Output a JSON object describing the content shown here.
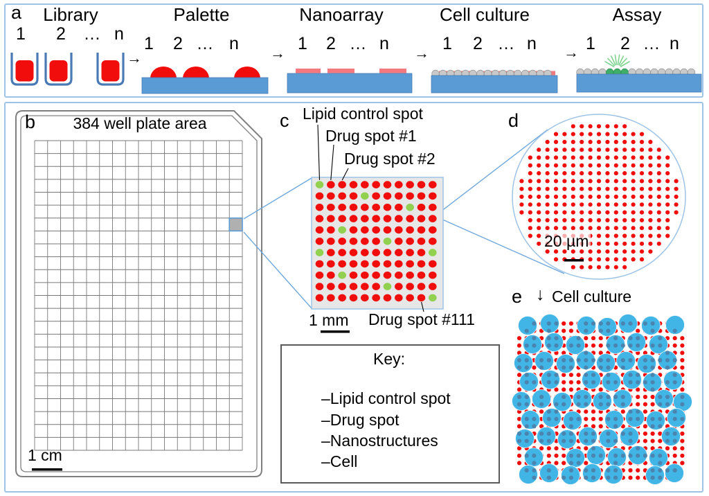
{
  "colors": {
    "frame_blue": "#9dc3e6",
    "connector_blue": "#6fa8dc",
    "substrate_blue": "#5b9bd5",
    "substrate_edge": "#4a7ab5",
    "red": "#f20d0d",
    "salmon": "#f4797f",
    "green_spot": "#92d050",
    "assay_green": "#3fae68",
    "assay_green_edge": "#2f9355",
    "assay_ray": "#7ed492",
    "cell_blue": "#41b6e6",
    "cell_inner_dot": "#4d7fa9",
    "gray_cell_fill": "#c9c9c9",
    "gray_cell_edge": "#9b9b9b",
    "panel_c_bg": "#e7e7e7",
    "plate_outline": "#7f7f7f",
    "grid_line": "#777777",
    "well_highlight": "#b0b0b0",
    "key_border": "#595959"
  },
  "panel_a": {
    "label": "a",
    "arrow_glyph": "→",
    "steps": [
      {
        "title": "Library",
        "numbers": [
          "1",
          "2",
          "…",
          "n"
        ]
      },
      {
        "title": "Palette",
        "numbers": [
          "1",
          "2",
          "…",
          "n"
        ]
      },
      {
        "title": "Nanoarray",
        "numbers": [
          "1",
          "2",
          "…",
          "n"
        ]
      },
      {
        "title": "Cell culture",
        "numbers": [
          "1",
          "2",
          "…",
          "n"
        ]
      },
      {
        "title": "Assay",
        "numbers": [
          "1",
          "2",
          "…",
          "n"
        ]
      }
    ]
  },
  "panel_b": {
    "label": "b",
    "title": "384 well plate area",
    "grid_cols": 16,
    "grid_rows": 24,
    "highlight_col": 16,
    "highlight_row": 7,
    "scale_label": "1 cm"
  },
  "panel_c": {
    "label": "c",
    "ann_lipid": "Lipid control spot",
    "ann_drug1": "Drug spot #1",
    "ann_drug2": "Drug spot #2",
    "ann_drug111": "Drug spot #111",
    "scale_label": "1 mm",
    "grid_rows": 11,
    "grid_cols": 11,
    "green_cells": [
      [
        1,
        1
      ],
      [
        2,
        5
      ],
      [
        3,
        9
      ],
      [
        5,
        3
      ],
      [
        6,
        7
      ],
      [
        7,
        1
      ],
      [
        7,
        11
      ],
      [
        9,
        3
      ],
      [
        10,
        7
      ],
      [
        11,
        11
      ]
    ]
  },
  "panel_d": {
    "label": "d",
    "scale_label": "20 µm"
  },
  "panel_e": {
    "label": "e",
    "arrow_glyph": "↓",
    "title": "Cell culture",
    "cells": [
      [
        762,
        470
      ],
      [
        794,
        467
      ],
      [
        847,
        470
      ],
      [
        877,
        472
      ],
      [
        907,
        467
      ],
      [
        940,
        470
      ],
      [
        975,
        469
      ],
      [
        769,
        497
      ],
      [
        800,
        494
      ],
      [
        831,
        498
      ],
      [
        889,
        497
      ],
      [
        919,
        494
      ],
      [
        951,
        497
      ],
      [
        756,
        524
      ],
      [
        786,
        521
      ],
      [
        817,
        525
      ],
      [
        846,
        520
      ],
      [
        875,
        524
      ],
      [
        904,
        521
      ],
      [
        934,
        525
      ],
      [
        964,
        520
      ],
      [
        764,
        551
      ],
      [
        795,
        548
      ],
      [
        854,
        548
      ],
      [
        883,
        551
      ],
      [
        913,
        548
      ],
      [
        942,
        552
      ],
      [
        972,
        549
      ],
      [
        753,
        579
      ],
      [
        782,
        576
      ],
      [
        812,
        580
      ],
      [
        841,
        576
      ],
      [
        870,
        579
      ],
      [
        899,
        576
      ],
      [
        959,
        576
      ],
      [
        986,
        580
      ],
      [
        766,
        606
      ],
      [
        797,
        603
      ],
      [
        827,
        607
      ],
      [
        887,
        606
      ],
      [
        917,
        603
      ],
      [
        947,
        607
      ],
      [
        977,
        603
      ],
      [
        758,
        633
      ],
      [
        789,
        630
      ],
      [
        819,
        634
      ],
      [
        849,
        630
      ],
      [
        879,
        633
      ],
      [
        909,
        630
      ],
      [
        969,
        630
      ],
      [
        771,
        660
      ],
      [
        831,
        661
      ],
      [
        861,
        657
      ],
      [
        891,
        660
      ],
      [
        921,
        657
      ],
      [
        951,
        661
      ],
      [
        763,
        685
      ],
      [
        793,
        683
      ],
      [
        824,
        686
      ],
      [
        855,
        683
      ],
      [
        886,
        685
      ],
      [
        946,
        686
      ],
      [
        974,
        683
      ]
    ]
  },
  "key": {
    "title": "Key:",
    "entries": [
      {
        "swatch": "lipid-control-spot",
        "label": "–Lipid control spot"
      },
      {
        "swatch": "drug-spot",
        "label": "–Drug spot"
      },
      {
        "swatch": "nanostructures",
        "label": "–Nanostructures"
      },
      {
        "swatch": "cell",
        "label": "–Cell"
      }
    ]
  }
}
